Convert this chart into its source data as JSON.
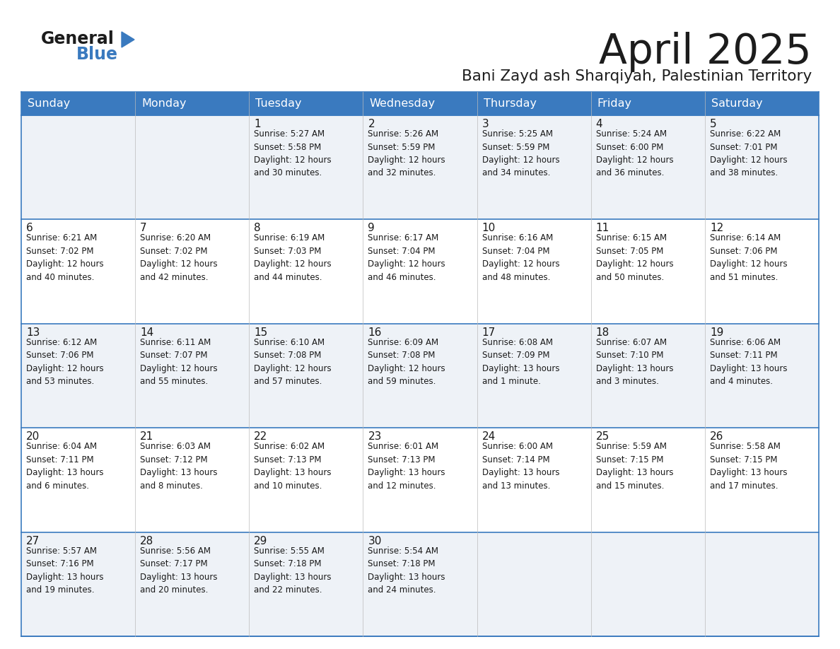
{
  "title": "April 2025",
  "subtitle": "Bani Zayd ash Sharqiyah, Palestinian Territory",
  "header_bg": "#3a7abf",
  "header_text": "#ffffff",
  "row_bg_odd": "#eef2f7",
  "row_bg_even": "#ffffff",
  "cell_border": "#3a7abf",
  "text_color": "#1a1a1a",
  "days_of_week": [
    "Sunday",
    "Monday",
    "Tuesday",
    "Wednesday",
    "Thursday",
    "Friday",
    "Saturday"
  ],
  "calendar_data": [
    [
      {
        "day": "",
        "info": ""
      },
      {
        "day": "",
        "info": ""
      },
      {
        "day": "1",
        "info": "Sunrise: 5:27 AM\nSunset: 5:58 PM\nDaylight: 12 hours\nand 30 minutes."
      },
      {
        "day": "2",
        "info": "Sunrise: 5:26 AM\nSunset: 5:59 PM\nDaylight: 12 hours\nand 32 minutes."
      },
      {
        "day": "3",
        "info": "Sunrise: 5:25 AM\nSunset: 5:59 PM\nDaylight: 12 hours\nand 34 minutes."
      },
      {
        "day": "4",
        "info": "Sunrise: 5:24 AM\nSunset: 6:00 PM\nDaylight: 12 hours\nand 36 minutes."
      },
      {
        "day": "5",
        "info": "Sunrise: 6:22 AM\nSunset: 7:01 PM\nDaylight: 12 hours\nand 38 minutes."
      }
    ],
    [
      {
        "day": "6",
        "info": "Sunrise: 6:21 AM\nSunset: 7:02 PM\nDaylight: 12 hours\nand 40 minutes."
      },
      {
        "day": "7",
        "info": "Sunrise: 6:20 AM\nSunset: 7:02 PM\nDaylight: 12 hours\nand 42 minutes."
      },
      {
        "day": "8",
        "info": "Sunrise: 6:19 AM\nSunset: 7:03 PM\nDaylight: 12 hours\nand 44 minutes."
      },
      {
        "day": "9",
        "info": "Sunrise: 6:17 AM\nSunset: 7:04 PM\nDaylight: 12 hours\nand 46 minutes."
      },
      {
        "day": "10",
        "info": "Sunrise: 6:16 AM\nSunset: 7:04 PM\nDaylight: 12 hours\nand 48 minutes."
      },
      {
        "day": "11",
        "info": "Sunrise: 6:15 AM\nSunset: 7:05 PM\nDaylight: 12 hours\nand 50 minutes."
      },
      {
        "day": "12",
        "info": "Sunrise: 6:14 AM\nSunset: 7:06 PM\nDaylight: 12 hours\nand 51 minutes."
      }
    ],
    [
      {
        "day": "13",
        "info": "Sunrise: 6:12 AM\nSunset: 7:06 PM\nDaylight: 12 hours\nand 53 minutes."
      },
      {
        "day": "14",
        "info": "Sunrise: 6:11 AM\nSunset: 7:07 PM\nDaylight: 12 hours\nand 55 minutes."
      },
      {
        "day": "15",
        "info": "Sunrise: 6:10 AM\nSunset: 7:08 PM\nDaylight: 12 hours\nand 57 minutes."
      },
      {
        "day": "16",
        "info": "Sunrise: 6:09 AM\nSunset: 7:08 PM\nDaylight: 12 hours\nand 59 minutes."
      },
      {
        "day": "17",
        "info": "Sunrise: 6:08 AM\nSunset: 7:09 PM\nDaylight: 13 hours\nand 1 minute."
      },
      {
        "day": "18",
        "info": "Sunrise: 6:07 AM\nSunset: 7:10 PM\nDaylight: 13 hours\nand 3 minutes."
      },
      {
        "day": "19",
        "info": "Sunrise: 6:06 AM\nSunset: 7:11 PM\nDaylight: 13 hours\nand 4 minutes."
      }
    ],
    [
      {
        "day": "20",
        "info": "Sunrise: 6:04 AM\nSunset: 7:11 PM\nDaylight: 13 hours\nand 6 minutes."
      },
      {
        "day": "21",
        "info": "Sunrise: 6:03 AM\nSunset: 7:12 PM\nDaylight: 13 hours\nand 8 minutes."
      },
      {
        "day": "22",
        "info": "Sunrise: 6:02 AM\nSunset: 7:13 PM\nDaylight: 13 hours\nand 10 minutes."
      },
      {
        "day": "23",
        "info": "Sunrise: 6:01 AM\nSunset: 7:13 PM\nDaylight: 13 hours\nand 12 minutes."
      },
      {
        "day": "24",
        "info": "Sunrise: 6:00 AM\nSunset: 7:14 PM\nDaylight: 13 hours\nand 13 minutes."
      },
      {
        "day": "25",
        "info": "Sunrise: 5:59 AM\nSunset: 7:15 PM\nDaylight: 13 hours\nand 15 minutes."
      },
      {
        "day": "26",
        "info": "Sunrise: 5:58 AM\nSunset: 7:15 PM\nDaylight: 13 hours\nand 17 minutes."
      }
    ],
    [
      {
        "day": "27",
        "info": "Sunrise: 5:57 AM\nSunset: 7:16 PM\nDaylight: 13 hours\nand 19 minutes."
      },
      {
        "day": "28",
        "info": "Sunrise: 5:56 AM\nSunset: 7:17 PM\nDaylight: 13 hours\nand 20 minutes."
      },
      {
        "day": "29",
        "info": "Sunrise: 5:55 AM\nSunset: 7:18 PM\nDaylight: 13 hours\nand 22 minutes."
      },
      {
        "day": "30",
        "info": "Sunrise: 5:54 AM\nSunset: 7:18 PM\nDaylight: 13 hours\nand 24 minutes."
      },
      {
        "day": "",
        "info": ""
      },
      {
        "day": "",
        "info": ""
      },
      {
        "day": "",
        "info": ""
      }
    ]
  ]
}
